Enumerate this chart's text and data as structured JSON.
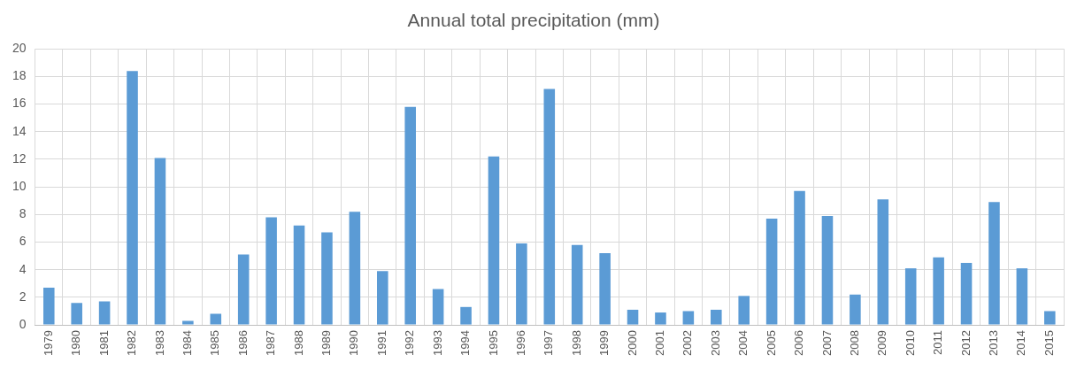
{
  "chart_data": {
    "type": "bar",
    "title": "Annual total precipitation (mm)",
    "categories": [
      "1979",
      "1980",
      "1981",
      "1982",
      "1983",
      "1984",
      "1985",
      "1986",
      "1987",
      "1988",
      "1989",
      "1990",
      "1991",
      "1992",
      "1993",
      "1994",
      "1995",
      "1996",
      "1997",
      "1998",
      "1999",
      "2000",
      "2001",
      "2002",
      "2003",
      "2004",
      "2005",
      "2006",
      "2007",
      "2008",
      "2009",
      "2010",
      "2011",
      "2012",
      "2013",
      "2014",
      "2015"
    ],
    "values": [
      2.7,
      1.6,
      1.7,
      18.4,
      12.1,
      0.3,
      0.8,
      5.1,
      7.8,
      7.2,
      6.7,
      8.2,
      3.9,
      15.8,
      2.6,
      1.3,
      12.2,
      5.9,
      17.1,
      5.8,
      5.2,
      1.1,
      0.9,
      1.0,
      1.1,
      2.1,
      7.7,
      9.7,
      7.9,
      2.2,
      9.1,
      4.1,
      4.9,
      4.5,
      8.9,
      4.1,
      1.0
    ],
    "color": "#5b9bd5",
    "ylim": [
      0,
      20
    ],
    "yticks": [
      0,
      2,
      4,
      6,
      8,
      10,
      12,
      14,
      16,
      18,
      20
    ],
    "grid": true
  }
}
